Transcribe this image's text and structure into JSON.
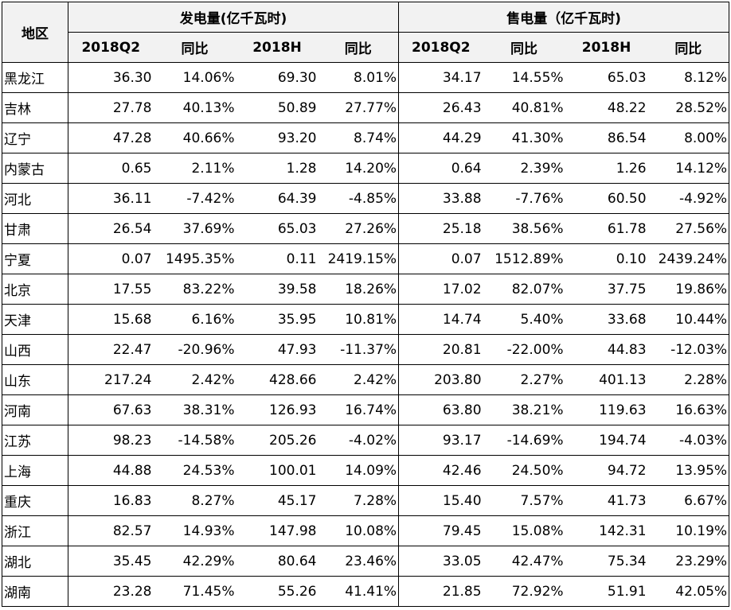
{
  "header": {
    "region": "地区",
    "generation_group": "发电量(亿千瓦时)",
    "sales_group": "售电量（亿千瓦时)",
    "sub": [
      "2018Q2",
      "同比",
      "2018H",
      "同比",
      "2018Q2",
      "同比",
      "2018H",
      "同比"
    ]
  },
  "rows": [
    {
      "region": "黑龙江",
      "g_q2": "36.30",
      "g_q2_yoy": "14.06%",
      "g_h": "69.30",
      "g_h_yoy": "8.01%",
      "s_q2": "34.17",
      "s_q2_yoy": "14.55%",
      "s_h": "65.03",
      "s_h_yoy": "8.12%"
    },
    {
      "region": "吉林",
      "g_q2": "27.78",
      "g_q2_yoy": "40.13%",
      "g_h": "50.89",
      "g_h_yoy": "27.77%",
      "s_q2": "26.43",
      "s_q2_yoy": "40.81%",
      "s_h": "48.22",
      "s_h_yoy": "28.52%"
    },
    {
      "region": "辽宁",
      "g_q2": "47.28",
      "g_q2_yoy": "40.66%",
      "g_h": "93.20",
      "g_h_yoy": "8.74%",
      "s_q2": "44.29",
      "s_q2_yoy": "41.30%",
      "s_h": "86.54",
      "s_h_yoy": "8.00%"
    },
    {
      "region": "内蒙古",
      "g_q2": "0.65",
      "g_q2_yoy": "2.11%",
      "g_h": "1.28",
      "g_h_yoy": "14.20%",
      "s_q2": "0.64",
      "s_q2_yoy": "2.39%",
      "s_h": "1.26",
      "s_h_yoy": "14.12%"
    },
    {
      "region": "河北",
      "g_q2": "36.11",
      "g_q2_yoy": "-7.42%",
      "g_h": "64.39",
      "g_h_yoy": "-4.85%",
      "s_q2": "33.88",
      "s_q2_yoy": "-7.76%",
      "s_h": "60.50",
      "s_h_yoy": "-4.92%"
    },
    {
      "region": "甘肃",
      "g_q2": "26.54",
      "g_q2_yoy": "37.69%",
      "g_h": "65.03",
      "g_h_yoy": "27.26%",
      "s_q2": "25.18",
      "s_q2_yoy": "38.56%",
      "s_h": "61.78",
      "s_h_yoy": "27.56%"
    },
    {
      "region": "宁夏",
      "g_q2": "0.07",
      "g_q2_yoy": "1495.35%",
      "g_h": "0.11",
      "g_h_yoy": "2419.15%",
      "s_q2": "0.07",
      "s_q2_yoy": "1512.89%",
      "s_h": "0.10",
      "s_h_yoy": "2439.24%"
    },
    {
      "region": "北京",
      "g_q2": "17.55",
      "g_q2_yoy": "83.22%",
      "g_h": "39.58",
      "g_h_yoy": "18.26%",
      "s_q2": "17.02",
      "s_q2_yoy": "82.07%",
      "s_h": "37.75",
      "s_h_yoy": "19.86%"
    },
    {
      "region": "天津",
      "g_q2": "15.68",
      "g_q2_yoy": "6.16%",
      "g_h": "35.95",
      "g_h_yoy": "10.81%",
      "s_q2": "14.74",
      "s_q2_yoy": "5.40%",
      "s_h": "33.68",
      "s_h_yoy": "10.44%"
    },
    {
      "region": "山西",
      "g_q2": "22.47",
      "g_q2_yoy": "-20.96%",
      "g_h": "47.93",
      "g_h_yoy": "-11.37%",
      "s_q2": "20.81",
      "s_q2_yoy": "-22.00%",
      "s_h": "44.83",
      "s_h_yoy": "-12.03%"
    },
    {
      "region": "山东",
      "g_q2": "217.24",
      "g_q2_yoy": "2.42%",
      "g_h": "428.66",
      "g_h_yoy": "2.42%",
      "s_q2": "203.80",
      "s_q2_yoy": "2.27%",
      "s_h": "401.13",
      "s_h_yoy": "2.28%"
    },
    {
      "region": "河南",
      "g_q2": "67.63",
      "g_q2_yoy": "38.31%",
      "g_h": "126.93",
      "g_h_yoy": "16.74%",
      "s_q2": "63.80",
      "s_q2_yoy": "38.21%",
      "s_h": "119.63",
      "s_h_yoy": "16.63%"
    },
    {
      "region": "江苏",
      "g_q2": "98.23",
      "g_q2_yoy": "-14.58%",
      "g_h": "205.26",
      "g_h_yoy": "-4.02%",
      "s_q2": "93.17",
      "s_q2_yoy": "-14.69%",
      "s_h": "194.74",
      "s_h_yoy": "-4.03%"
    },
    {
      "region": "上海",
      "g_q2": "44.88",
      "g_q2_yoy": "24.53%",
      "g_h": "100.01",
      "g_h_yoy": "14.09%",
      "s_q2": "42.46",
      "s_q2_yoy": "24.50%",
      "s_h": "94.72",
      "s_h_yoy": "13.95%"
    },
    {
      "region": "重庆",
      "g_q2": "16.83",
      "g_q2_yoy": "8.27%",
      "g_h": "45.17",
      "g_h_yoy": "7.28%",
      "s_q2": "15.40",
      "s_q2_yoy": "7.57%",
      "s_h": "41.73",
      "s_h_yoy": "6.67%"
    },
    {
      "region": "浙江",
      "g_q2": "82.57",
      "g_q2_yoy": "14.93%",
      "g_h": "147.98",
      "g_h_yoy": "10.08%",
      "s_q2": "79.45",
      "s_q2_yoy": "15.08%",
      "s_h": "142.31",
      "s_h_yoy": "10.19%"
    },
    {
      "region": "湖北",
      "g_q2": "35.45",
      "g_q2_yoy": "42.29%",
      "g_h": "80.64",
      "g_h_yoy": "23.46%",
      "s_q2": "33.05",
      "s_q2_yoy": "42.47%",
      "s_h": "75.34",
      "s_h_yoy": "23.29%"
    },
    {
      "region": "湖南",
      "g_q2": "23.28",
      "g_q2_yoy": "71.45%",
      "g_h": "55.26",
      "g_h_yoy": "41.41%",
      "s_q2": "21.85",
      "s_q2_yoy": "72.92%",
      "s_h": "51.91",
      "s_h_yoy": "42.05%"
    }
  ]
}
